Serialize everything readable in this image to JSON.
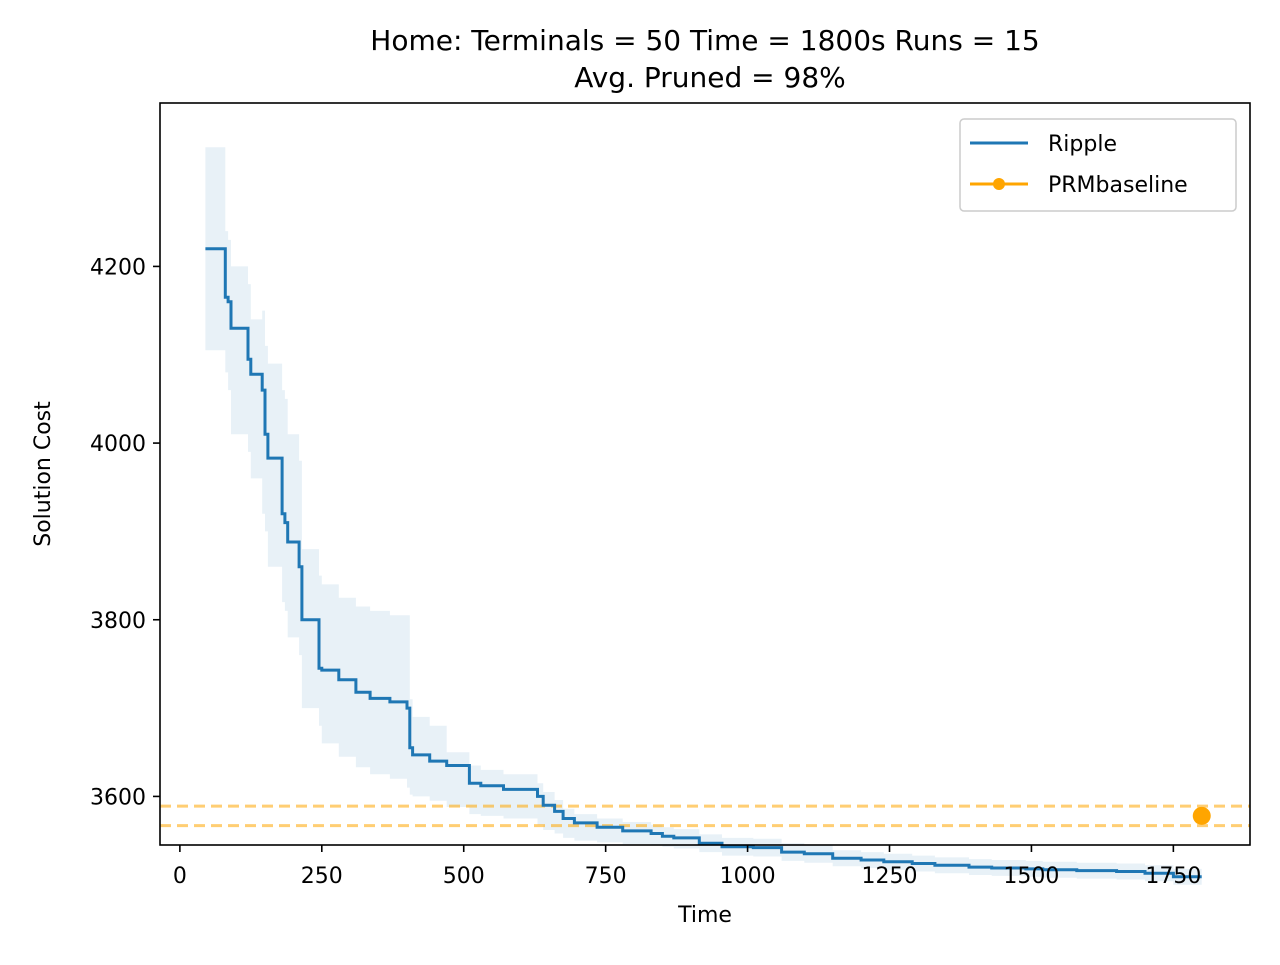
{
  "chart_data": {
    "type": "line",
    "title_line1": "Home:  Terminals = 50  Time = 1800s  Runs = 15",
    "title_line2": "Avg. Pruned = 98%",
    "xlabel": "Time",
    "ylabel": "Solution Cost",
    "xlim": [
      -35,
      1885
    ],
    "ylim": [
      3545,
      4385
    ],
    "xticks": [
      0,
      250,
      500,
      750,
      1000,
      1250,
      1500,
      1750
    ],
    "yticks": [
      3600,
      3800,
      4000,
      4200
    ],
    "grid": false,
    "legend_position": "top-right",
    "colors": {
      "ripple": "#1f77b4",
      "ripple_band": "#1f77b4",
      "prm": "#ffa500"
    },
    "series": [
      {
        "name": "Ripple",
        "style": "step",
        "x": [
          45,
          80,
          85,
          90,
          120,
          125,
          145,
          150,
          155,
          180,
          185,
          190,
          210,
          215,
          245,
          250,
          280,
          310,
          335,
          370,
          400,
          405,
          410,
          440,
          470,
          510,
          530,
          570,
          630,
          640,
          660,
          675,
          695,
          735,
          780,
          830,
          850,
          870,
          915,
          955,
          1010,
          1060,
          1100,
          1150,
          1200,
          1240,
          1290,
          1330,
          1390,
          1430,
          1490,
          1520,
          1580,
          1650,
          1700,
          1750,
          1800
        ],
        "y": [
          4220,
          4165,
          4160,
          4130,
          4095,
          4078,
          4060,
          4010,
          3983,
          3920,
          3910,
          3888,
          3860,
          3800,
          3745,
          3743,
          3732,
          3718,
          3711,
          3707,
          3700,
          3655,
          3647,
          3640,
          3635,
          3615,
          3612,
          3608,
          3600,
          3590,
          3583,
          3575,
          3570,
          3565,
          3561,
          3558,
          3555,
          3553,
          3547,
          3543,
          3542,
          3537,
          3535,
          3530,
          3528,
          3526,
          3524,
          3522,
          3520,
          3519,
          3518,
          3517,
          3516,
          3515,
          3513,
          3509,
          3509
        ],
        "band_lower": [
          4105,
          4080,
          4060,
          4010,
          3990,
          3960,
          3920,
          3900,
          3860,
          3820,
          3810,
          3780,
          3760,
          3700,
          3680,
          3660,
          3645,
          3633,
          3625,
          3620,
          3610,
          3602,
          3600,
          3595,
          3588,
          3580,
          3578,
          3575,
          3568,
          3562,
          3558,
          3553,
          3550,
          3548,
          3546,
          3545,
          3543,
          3541,
          3537,
          3533,
          3532,
          3527,
          3525,
          3521,
          3519,
          3517,
          3515,
          3513,
          3511,
          3510,
          3509,
          3508,
          3507,
          3506,
          3504,
          3500,
          3500
        ],
        "band_upper": [
          4335,
          4240,
          4230,
          4200,
          4180,
          4140,
          4150,
          4110,
          4090,
          4060,
          4050,
          4010,
          3980,
          3880,
          3850,
          3840,
          3825,
          3815,
          3810,
          3805,
          3805,
          3710,
          3690,
          3680,
          3650,
          3635,
          3630,
          3625,
          3615,
          3605,
          3596,
          3586,
          3580,
          3575,
          3571,
          3568,
          3565,
          3563,
          3557,
          3553,
          3552,
          3547,
          3545,
          3539,
          3537,
          3535,
          3533,
          3531,
          3529,
          3528,
          3527,
          3526,
          3525,
          3524,
          3522,
          3518,
          3518
        ]
      },
      {
        "name": "PRMbaseline",
        "style": "point",
        "x": [
          1800
        ],
        "y": [
          3578
        ],
        "band_lower": 3567,
        "band_upper": 3589
      }
    ]
  }
}
